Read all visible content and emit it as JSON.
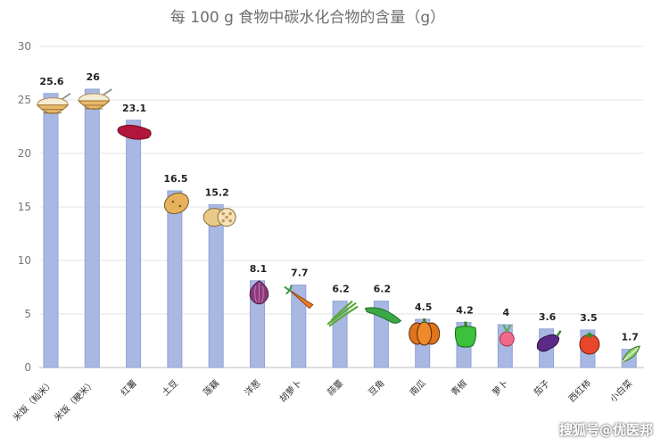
{
  "chart_data": {
    "type": "bar",
    "title": "每 100 g 食物中碳水化合物的含量（g）",
    "categories": [
      "米饭（籼米）",
      "米饭（粳米）",
      "红薯",
      "土豆",
      "莲藕",
      "洋葱",
      "胡萝卜",
      "蒜薹",
      "豆角",
      "南瓜",
      "青椒",
      "萝卜",
      "茄子",
      "西红柿",
      "小白菜"
    ],
    "values": [
      25.6,
      26,
      23.1,
      16.5,
      15.2,
      8.1,
      7.7,
      6.2,
      6.2,
      4.5,
      4.2,
      4,
      3.6,
      3.5,
      1.7
    ],
    "value_labels": [
      "25.6",
      "26",
      "23.1",
      "16.5",
      "15.2",
      "8.1",
      "7.7",
      "6.2",
      "6.2",
      "4.5",
      "4.2",
      "4",
      "3.6",
      "3.5",
      "1.7"
    ],
    "yticks": [
      "0",
      "5",
      "10",
      "15",
      "20",
      "25",
      "30"
    ],
    "ylim": [
      0,
      30
    ],
    "grid": true,
    "legend": "none",
    "colors": {
      "bar": "#a9b8e3",
      "bar_edge": "#8fa2d6"
    },
    "icons": [
      "rice-bowl-icon",
      "rice-bowl-icon",
      "sweet-potato-icon",
      "potato-icon",
      "lotus-root-icon",
      "onion-icon",
      "carrot-icon",
      "garlic-sprout-icon",
      "green-bean-icon",
      "pumpkin-icon",
      "green-pepper-icon",
      "radish-icon",
      "eggplant-icon",
      "tomato-icon",
      "bok-choy-icon"
    ]
  },
  "watermark": "搜狐号@优医邦"
}
